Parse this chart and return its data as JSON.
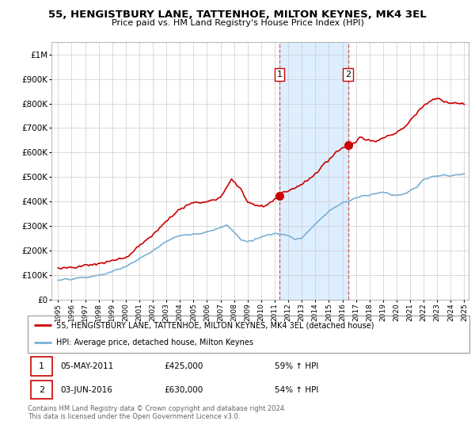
{
  "title": "55, HENGISTBURY LANE, TATTENHOE, MILTON KEYNES, MK4 3EL",
  "subtitle": "Price paid vs. HM Land Registry's House Price Index (HPI)",
  "ylim": [
    0,
    1050000
  ],
  "yticks": [
    0,
    100000,
    200000,
    300000,
    400000,
    500000,
    600000,
    700000,
    800000,
    900000,
    1000000
  ],
  "ytick_labels": [
    "£0",
    "£100K",
    "£200K",
    "£300K",
    "£400K",
    "£500K",
    "£600K",
    "£700K",
    "£800K",
    "£900K",
    "£1M"
  ],
  "property_color": "#cc0000",
  "hpi_color": "#7ab0d4",
  "shaded_color": "#ddeeff",
  "vline_color": "#cc0000",
  "transaction1_year": 2011.35,
  "transaction1_value": 425000,
  "transaction2_year": 2016.42,
  "transaction2_value": 630000,
  "legend_property": "55, HENGISTBURY LANE, TATTENHOE, MILTON KEYNES, MK4 3EL (detached house)",
  "legend_hpi": "HPI: Average price, detached house, Milton Keynes",
  "note1_date": "05-MAY-2011",
  "note1_price": "£425,000",
  "note1_hpi": "59% ↑ HPI",
  "note2_date": "03-JUN-2016",
  "note2_price": "£630,000",
  "note2_hpi": "54% ↑ HPI",
  "copyright": "Contains HM Land Registry data © Crown copyright and database right 2024.\nThis data is licensed under the Open Government Licence v3.0.",
  "xstart": 1995,
  "xend": 2025
}
